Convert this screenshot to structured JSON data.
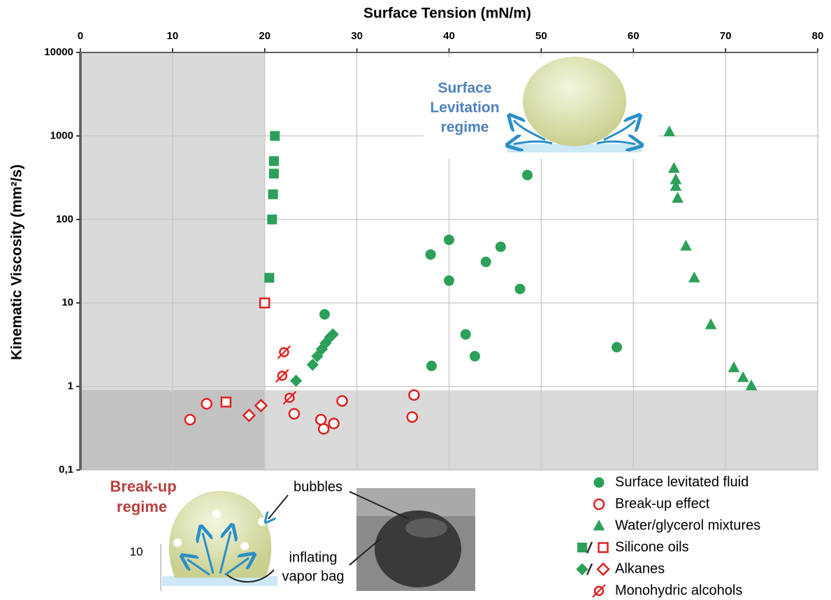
{
  "chart_data": {
    "type": "scatter",
    "title": "Surface Tension (mN/m)",
    "y_label": "Kinematic Viscosity (mm²/s)",
    "xlim": [
      0,
      80
    ],
    "xticks": [
      0,
      10,
      20,
      30,
      40,
      50,
      60,
      70,
      80
    ],
    "ylim": [
      0.1,
      10000
    ],
    "yticks": [
      {
        "value": 0.1,
        "label": "0,1"
      },
      1,
      10,
      100,
      1000,
      10000
    ],
    "y_scale": "log",
    "x_axis_position": "top",
    "grid": true,
    "shaded_regions": [
      {
        "xlim": [
          0,
          20
        ],
        "ylim": [
          0.1,
          10000
        ]
      },
      {
        "xlim": [
          0,
          80
        ],
        "ylim": [
          0.1,
          0.9
        ]
      }
    ],
    "series": [
      {
        "name": "Surface levitated fluid",
        "markers": [
          {
            "shape": "circle",
            "color": "#2ca05a",
            "filled": true,
            "x": [
              26.5,
              38.0,
              40.0,
              40.0,
              44.0,
              45.6,
              47.7,
              48.5,
              41.8,
              42.8,
              38.1,
              58.2
            ],
            "y": [
              7.3,
              38,
              57,
              18.5,
              31,
              47,
              14.7,
              340,
              4.2,
              2.3,
              1.76,
              2.95
            ]
          }
        ]
      },
      {
        "name": "Break-up effect",
        "markers": [
          {
            "shape": "circle",
            "color": "#e02020",
            "filled": false,
            "x": [
              11.9,
              13.7,
              23.2,
              26.1,
              26.4,
              27.5,
              28.4,
              36.2,
              36.0
            ],
            "y": [
              0.4,
              0.62,
              0.47,
              0.4,
              0.31,
              0.36,
              0.67,
              0.79,
              0.43
            ]
          }
        ]
      },
      {
        "name": "Water/glycerol mixtures",
        "markers": [
          {
            "shape": "triangle",
            "color": "#2ca05a",
            "filled": true,
            "x": [
              63.9,
              64.4,
              64.6,
              64.6,
              64.8,
              65.7,
              66.6,
              68.4,
              70.9,
              71.9,
              72.8
            ],
            "y": [
              1120,
              410,
              300,
              250,
              180,
              48,
              20,
              5.5,
              1.68,
              1.28,
              1.02
            ]
          }
        ]
      },
      {
        "name": "Silicone oils",
        "markers": [
          {
            "shape": "square",
            "color": "#2ca05a",
            "filled": true,
            "x": [
              21.1,
              21.0,
              21.0,
              20.9,
              20.8,
              20.5
            ],
            "y": [
              1000,
              500,
              354,
              200,
              100,
              20
            ]
          },
          {
            "shape": "square",
            "color": "#e02020",
            "filled": false,
            "x": [
              20.0,
              15.8
            ],
            "y": [
              10,
              0.65
            ]
          }
        ]
      },
      {
        "name": "Alkanes",
        "markers": [
          {
            "shape": "diamond",
            "color": "#2ca05a",
            "filled": true,
            "x": [
              23.4,
              25.2,
              25.7,
              26.2,
              26.6,
              27.1,
              27.4
            ],
            "y": [
              1.17,
              1.82,
              2.3,
              2.8,
              3.3,
              3.9,
              4.2
            ]
          },
          {
            "shape": "diamond",
            "color": "#e02020",
            "filled": false,
            "x": [
              18.3,
              19.6
            ],
            "y": [
              0.45,
              0.59
            ]
          }
        ]
      },
      {
        "name": "Monohydric alcohols",
        "markers": [
          {
            "shape": "slashed-circle",
            "color": "#e02020",
            "filled": false,
            "x": [
              22.1,
              21.9,
              22.7
            ],
            "y": [
              2.57,
              1.34,
              0.73
            ]
          }
        ]
      }
    ],
    "annotations": {
      "levitation": [
        "Surface",
        "Levitation",
        "regime"
      ],
      "breakup": [
        "Break-up",
        "regime"
      ],
      "bubbles": "bubbles",
      "vapor_bag": [
        "inflating",
        "vapor bag"
      ],
      "inset_tick": "10"
    }
  }
}
